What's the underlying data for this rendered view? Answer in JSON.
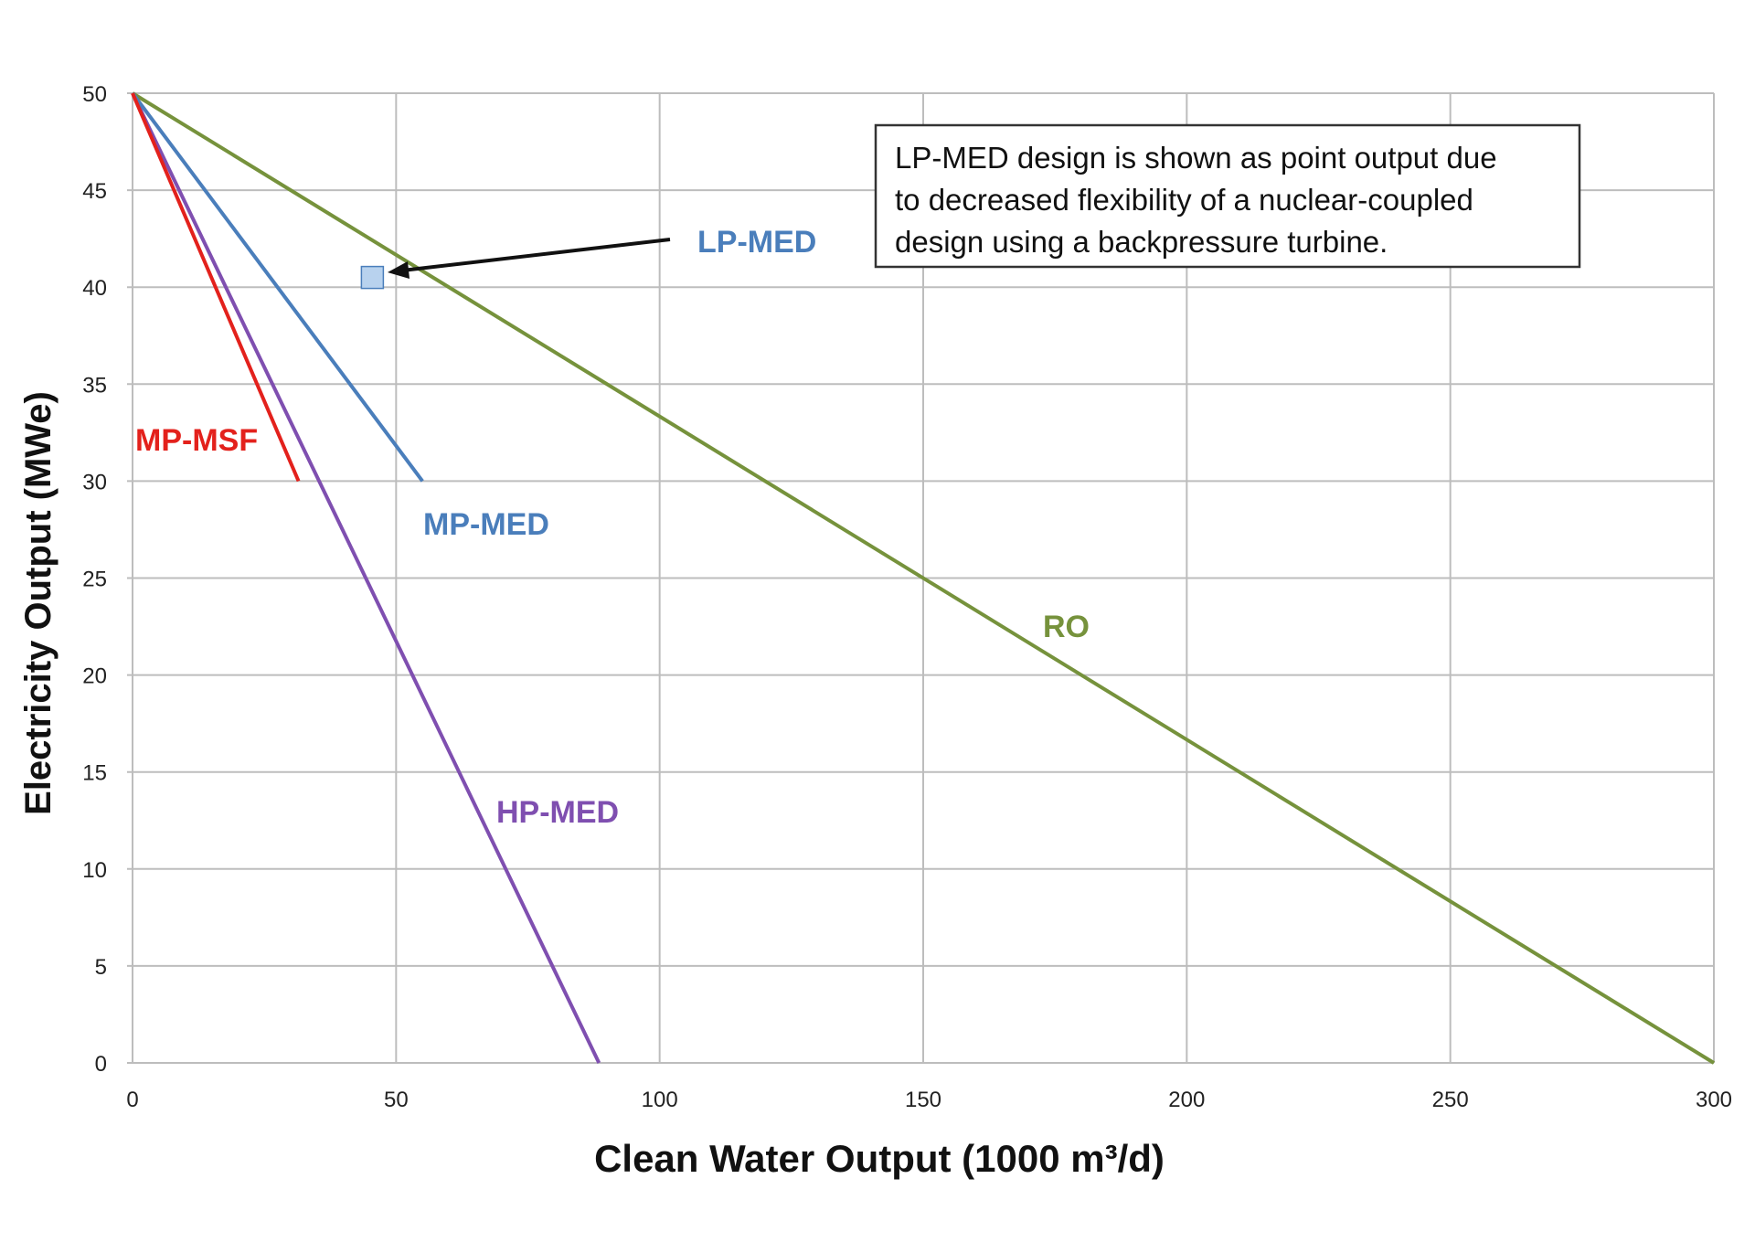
{
  "chart_data": {
    "type": "line",
    "title": "",
    "xlabel": "Clean Water Output (1000 m³/d)",
    "ylabel": "Electricity Output (MWe)",
    "xlim": [
      0,
      300
    ],
    "ylim": [
      0,
      50
    ],
    "xticks": [
      "0",
      "50",
      "100",
      "150",
      "200",
      "250",
      "300"
    ],
    "yticks": [
      "0",
      "5",
      "10",
      "15",
      "20",
      "25",
      "30",
      "35",
      "40",
      "45",
      "50"
    ],
    "grid": true,
    "series": [
      {
        "name": "RO",
        "label": "RO",
        "color": "#76923c",
        "points": [
          [
            0,
            50
          ],
          [
            300,
            0
          ]
        ]
      },
      {
        "name": "HP-MED",
        "label": "HP-MED",
        "color": "#7f4fb0",
        "points": [
          [
            0,
            50
          ],
          [
            88.5,
            0
          ]
        ]
      },
      {
        "name": "MP-MED",
        "label": "MP-MED",
        "color": "#4a7ebb",
        "points": [
          [
            0,
            50
          ],
          [
            55,
            30
          ]
        ]
      },
      {
        "name": "MP-MSF",
        "label": "MP-MSF",
        "color": "#e3211c",
        "points": [
          [
            0,
            50
          ],
          [
            31.5,
            30
          ]
        ]
      }
    ],
    "points": [
      {
        "name": "LP-MED",
        "label": "LP-MED",
        "color": "#4a7ebb",
        "fill": "#b8d2ee",
        "x": 45.5,
        "y": 40.5
      }
    ],
    "annotation": {
      "lines": [
        "LP-MED design is shown as point output due",
        "to decreased flexibility of a nuclear-coupled",
        "design using a backpressure turbine."
      ]
    }
  }
}
